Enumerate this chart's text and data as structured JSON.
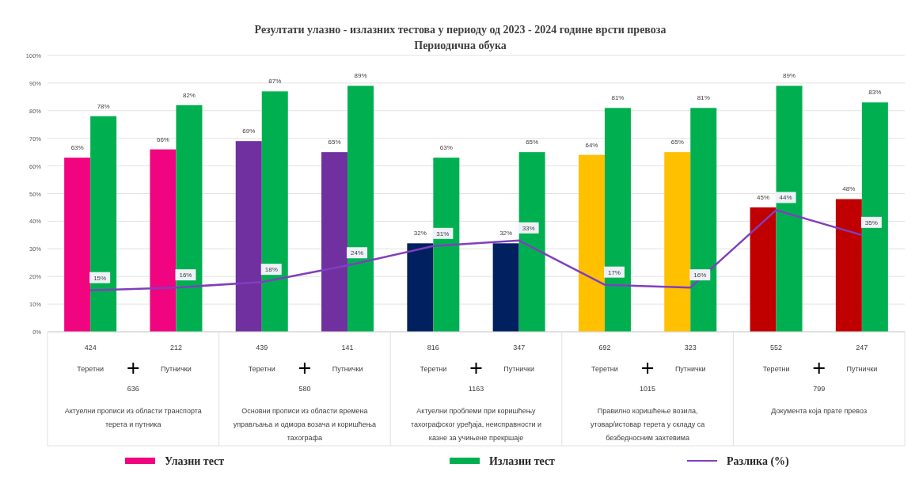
{
  "chart_data": {
    "type": "bar",
    "title": "Резултати улазно - излазних тестова у периоду од 2023 - 2024 године врсти превоза",
    "subtitle": "Периодична обука",
    "categories": [
      "424\nТеретни",
      "212\nПутнички",
      "439\nТеретни",
      "141\nПутнички",
      "816\nТеретни",
      "347\nПутнички",
      "692\nТеретни",
      "323\nПутнички",
      "552\nТеретни",
      "247\nПутнички"
    ],
    "annotations": [
      "636",
      "Актуелни прописи из области транспорта терета и путника",
      "580",
      "Основни прописи из области времена управљања и одмора возача и коришћења тахографа",
      "1163",
      "Актуелни проблеми при коришћењу тахографског уређаја, неисправности и казне за учињене прекршаје",
      "1015",
      "Правилно коришћење возила, утовар/истовар терета у складу са безбедносним захтевима",
      "799",
      "Документа која прате превоз"
    ],
    "series": [
      {
        "name": "Улазни тест",
        "color": "#f0047f",
        "colors": [
          "#f0047f",
          "#f0047f",
          "#7030a0",
          "#7030a0",
          "#002060",
          "#002060",
          "#ffc000",
          "#ffc000",
          "#c00000",
          "#c00000"
        ],
        "values": [
          63,
          66,
          69,
          65,
          32,
          32,
          64,
          65,
          45,
          48
        ],
        "value_labels": [
          "63%",
          "66%",
          "69%",
          "65%",
          "32%",
          "32%",
          "64%",
          "65%",
          "45%",
          "48%"
        ]
      },
      {
        "name": "Излазни тест",
        "color": "#00b050",
        "values": [
          78,
          82,
          87,
          89,
          63,
          65,
          81,
          81,
          89,
          83
        ],
        "value_labels": [
          "78%",
          "82%",
          "87%",
          "89%",
          "63%",
          "65%",
          "81%",
          "81%",
          "89%",
          "83%"
        ]
      },
      {
        "name": "Разлика (%)",
        "type": "line",
        "color": "#7f3fbf",
        "values": [
          15,
          16,
          18,
          24,
          31,
          33,
          17,
          16,
          44,
          35
        ],
        "value_labels": [
          "15%",
          "16%",
          "18%",
          "24%",
          "31%",
          "33%",
          "17%",
          "16%",
          "44%",
          "35%"
        ]
      }
    ],
    "ylim": [
      0,
      100
    ],
    "yticks": [
      {
        "value": 0,
        "label": "0%"
      },
      {
        "value": 10,
        "label": "10%"
      },
      {
        "value": 20,
        "label": "20%"
      },
      {
        "value": 30,
        "label": "30%"
      },
      {
        "value": 40,
        "label": "40%"
      },
      {
        "value": 50,
        "label": "50%"
      },
      {
        "value": 60,
        "label": "60%"
      },
      {
        "value": 70,
        "label": "70%"
      },
      {
        "value": 80,
        "label": "80%"
      },
      {
        "value": 90,
        "label": "90%"
      },
      {
        "value": 100,
        "label": "100%"
      }
    ],
    "grid": "y",
    "legend": "bottom",
    "marker": "none",
    "line_style": "solid"
  }
}
